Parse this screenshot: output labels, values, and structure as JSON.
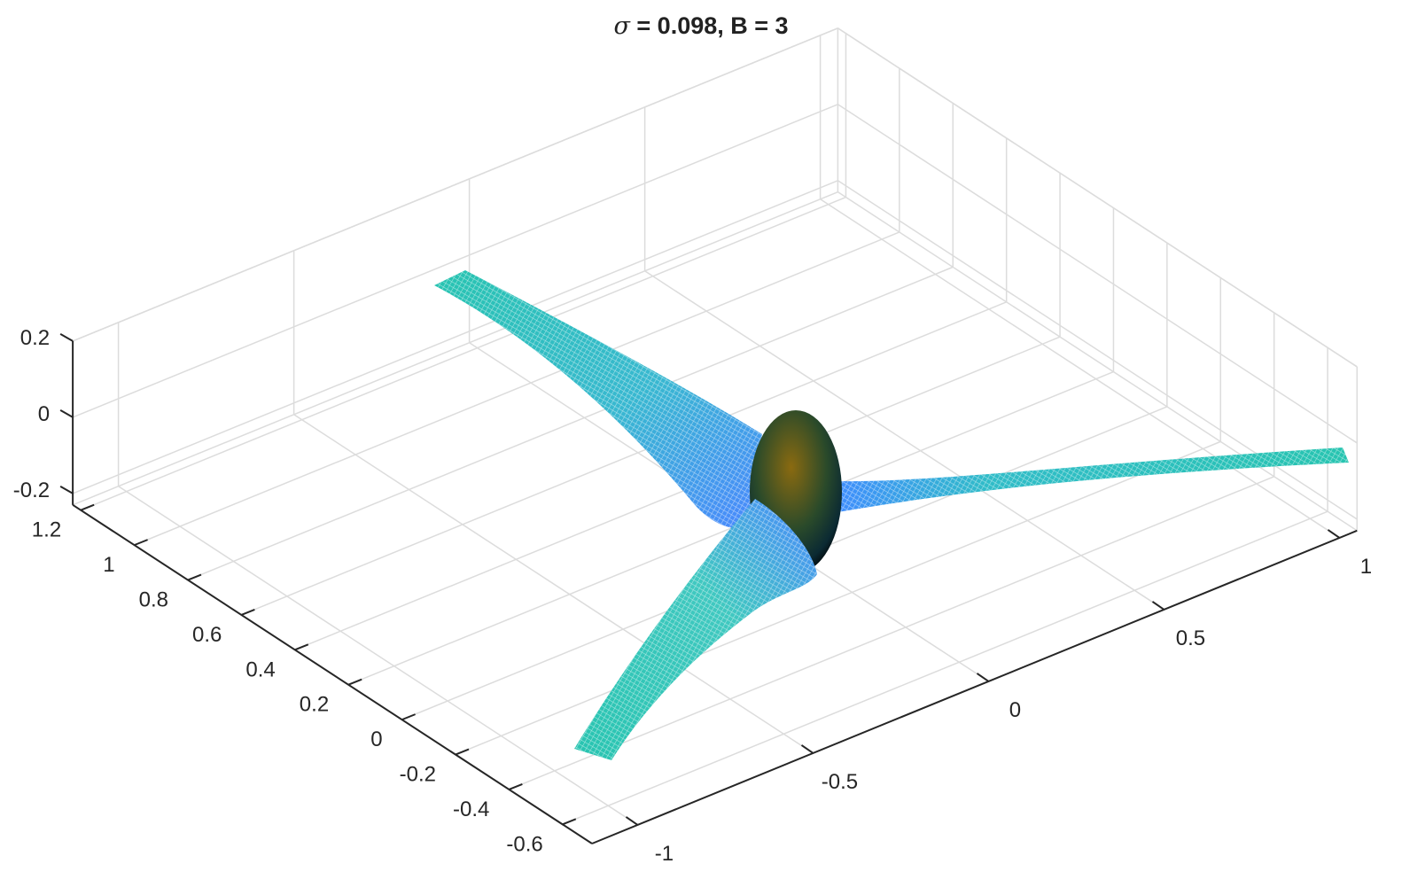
{
  "chart_data": {
    "type": "surface3d",
    "title_symbol": "σ",
    "title": "= 0.098, B = 3",
    "sigma": 0.098,
    "B": 3,
    "xlim": [
      -1.13,
      1.05
    ],
    "ylim": [
      -0.71,
      1.23
    ],
    "zlim": [
      -0.23,
      0.2
    ],
    "xticks": [
      -1,
      -0.5,
      0,
      0.5,
      1
    ],
    "xticklabels": [
      "-1",
      "-0.5",
      "0",
      "0.5",
      "1"
    ],
    "yticks": [
      -0.6,
      -0.4,
      -0.2,
      0,
      0.2,
      0.4,
      0.6,
      0.8,
      1,
      1.2
    ],
    "yticklabels": [
      "-0.6",
      "-0.4",
      "-0.2",
      "0",
      "0.2",
      "0.4",
      "0.6",
      "0.8",
      "1",
      "1.2"
    ],
    "zticks": [
      -0.2,
      0,
      0.2
    ],
    "zticklabels": [
      "-0.2",
      "0",
      "0.2"
    ],
    "grid": true,
    "objects": [
      "hub (ellipsoid)",
      "blade 1",
      "blade 2",
      "blade 3"
    ],
    "colors": {
      "blade_tip": "#27c4b0",
      "blade_root": "#4a86ff",
      "hub_top": "#8a6a10",
      "hub_bottom": "#0b3d4a",
      "grid": "#dcdcdc",
      "axis": "#262626"
    }
  }
}
